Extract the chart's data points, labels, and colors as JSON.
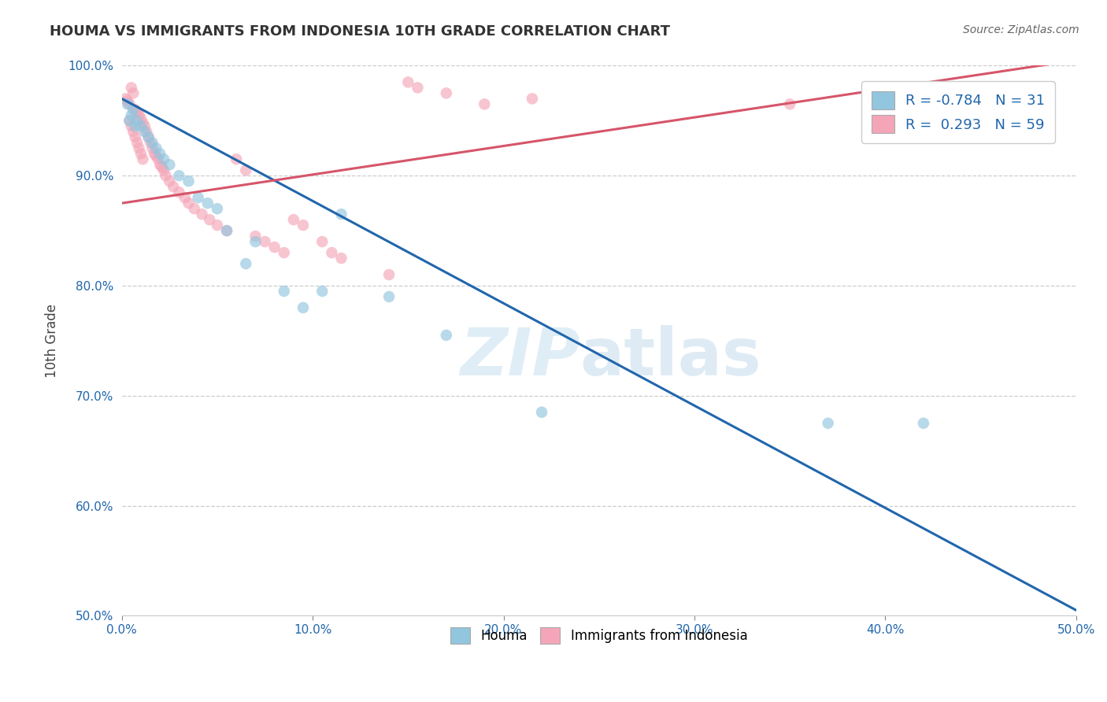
{
  "title": "HOUMA VS IMMIGRANTS FROM INDONESIA 10TH GRADE CORRELATION CHART",
  "source": "Source: ZipAtlas.com",
  "ylabel": "10th Grade",
  "xlabel": "",
  "xlim": [
    0.0,
    50.0
  ],
  "ylim": [
    50.0,
    100.0
  ],
  "xticks": [
    0.0,
    10.0,
    20.0,
    30.0,
    40.0,
    50.0
  ],
  "yticks": [
    50.0,
    60.0,
    70.0,
    80.0,
    90.0,
    100.0
  ],
  "legend_labels": [
    "Houma",
    "Immigrants from Indonesia"
  ],
  "legend_R": [
    -0.784,
    0.293
  ],
  "legend_N": [
    31,
    59
  ],
  "blue_color": "#92c5de",
  "pink_color": "#f4a6b8",
  "blue_line_color": "#2166ac",
  "pink_line_color": "#d6556a",
  "watermark_zip": "ZIP",
  "watermark_atlas": "atlas",
  "blue_scatter_x": [
    0.3,
    0.5,
    0.6,
    0.8,
    1.0,
    1.2,
    1.4,
    1.6,
    1.8,
    2.0,
    2.2,
    2.5,
    3.0,
    3.5,
    4.0,
    4.5,
    5.0,
    5.5,
    6.5,
    7.0,
    8.5,
    9.5,
    10.5,
    11.5,
    14.0,
    17.0,
    22.0,
    37.0,
    42.0,
    0.4,
    0.7
  ],
  "blue_scatter_y": [
    96.5,
    95.5,
    96.0,
    95.0,
    94.5,
    94.0,
    93.5,
    93.0,
    92.5,
    92.0,
    91.5,
    91.0,
    90.0,
    89.5,
    88.0,
    87.5,
    87.0,
    85.0,
    82.0,
    84.0,
    79.5,
    78.0,
    79.5,
    86.5,
    79.0,
    75.5,
    68.5,
    67.5,
    67.5,
    95.0,
    94.5
  ],
  "pink_scatter_x": [
    0.2,
    0.3,
    0.4,
    0.5,
    0.6,
    0.7,
    0.8,
    0.9,
    1.0,
    1.1,
    1.2,
    1.3,
    1.4,
    1.5,
    1.6,
    1.7,
    1.8,
    1.9,
    2.0,
    2.1,
    2.2,
    2.3,
    2.5,
    2.7,
    3.0,
    3.3,
    3.5,
    3.8,
    4.2,
    4.6,
    5.0,
    5.5,
    6.0,
    6.5,
    7.0,
    7.5,
    8.0,
    8.5,
    9.0,
    9.5,
    10.5,
    11.0,
    11.5,
    14.0,
    15.0,
    15.5,
    17.0,
    19.0,
    21.5,
    35.0,
    42.5,
    0.4,
    0.5,
    0.6,
    0.7,
    0.8,
    0.9,
    1.0,
    1.1
  ],
  "pink_scatter_y": [
    97.0,
    96.8,
    96.5,
    98.0,
    97.5,
    96.0,
    95.8,
    95.5,
    95.2,
    94.8,
    94.5,
    94.0,
    93.5,
    93.0,
    92.5,
    92.0,
    91.8,
    91.5,
    91.0,
    90.8,
    90.5,
    90.0,
    89.5,
    89.0,
    88.5,
    88.0,
    87.5,
    87.0,
    86.5,
    86.0,
    85.5,
    85.0,
    91.5,
    90.5,
    84.5,
    84.0,
    83.5,
    83.0,
    86.0,
    85.5,
    84.0,
    83.0,
    82.5,
    81.0,
    98.5,
    98.0,
    97.5,
    96.5,
    97.0,
    96.5,
    96.0,
    95.0,
    94.5,
    94.0,
    93.5,
    93.0,
    92.5,
    92.0,
    91.5
  ],
  "blue_line_x0": 0.0,
  "blue_line_y0": 97.0,
  "blue_line_x1": 50.0,
  "blue_line_y1": 50.5,
  "pink_line_x0": 0.0,
  "pink_line_y0": 87.5,
  "pink_line_x1": 50.0,
  "pink_line_y1": 100.5
}
